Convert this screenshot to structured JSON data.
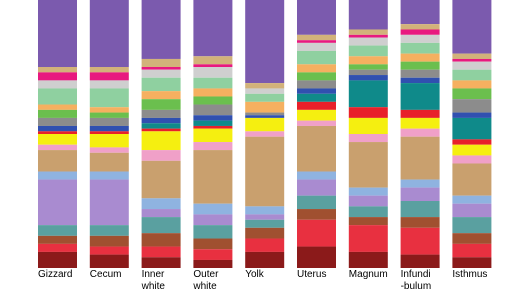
{
  "chart_data": {
    "type": "stacked-bar",
    "categories": [
      [
        "Gizzard"
      ],
      [
        "Cecum"
      ],
      [
        "Inner",
        "white"
      ],
      [
        "Outer",
        "white"
      ],
      [
        "Yolk"
      ],
      [
        "Uterus"
      ],
      [
        "Magnum"
      ],
      [
        "Infundi",
        "-bulum"
      ],
      [
        "Isthmus"
      ]
    ],
    "ylim": [
      0,
      100
    ],
    "series": [
      {
        "color": "#7b5aae",
        "values": [
          25,
          25,
          22,
          21,
          31,
          13,
          11,
          9,
          20
        ]
      },
      {
        "color": "#d2b27a",
        "values": [
          2,
          2,
          3,
          3,
          2,
          2,
          2,
          2,
          2
        ]
      },
      {
        "color": "#e8197f",
        "values": [
          3,
          3,
          1,
          1,
          0,
          1,
          1,
          2,
          1
        ]
      },
      {
        "color": "#cfcfcf",
        "values": [
          3,
          3,
          3,
          4,
          2,
          3,
          3,
          3,
          3
        ]
      },
      {
        "color": "#8fd0a0",
        "values": [
          6,
          7,
          5,
          4,
          3,
          5,
          4,
          4,
          4
        ]
      },
      {
        "color": "#f5b060",
        "values": [
          2,
          2,
          3,
          3,
          4,
          3,
          3,
          3,
          3
        ]
      },
      {
        "color": "#6bbf4e",
        "values": [
          3,
          2,
          4,
          3,
          0,
          3,
          2,
          3,
          4
        ]
      },
      {
        "color": "#8c8c8c",
        "values": [
          3,
          3,
          3,
          4,
          1,
          3,
          2,
          3,
          5
        ]
      },
      {
        "color": "#3050b0",
        "values": [
          2,
          2,
          2,
          2,
          1,
          2,
          2,
          2,
          2
        ]
      },
      {
        "color": "#0f8a8a",
        "values": [
          0,
          0,
          2,
          2,
          0,
          3,
          10,
          10,
          8
        ]
      },
      {
        "color": "#e8202a",
        "values": [
          1,
          1,
          1,
          1,
          0,
          3,
          4,
          3,
          2
        ]
      },
      {
        "color": "#f5ef10",
        "values": [
          4,
          5,
          7,
          5,
          5,
          4,
          6,
          4,
          4
        ]
      },
      {
        "color": "#f0a0c8",
        "values": [
          2,
          2,
          4,
          3,
          2,
          2,
          3,
          3,
          3
        ]
      },
      {
        "color": "#c9a06e",
        "values": [
          8,
          7,
          14,
          20,
          26,
          17,
          17,
          16,
          12
        ]
      },
      {
        "color": "#8fb3e0",
        "values": [
          3,
          3,
          4,
          4,
          3,
          3,
          3,
          3,
          3
        ]
      },
      {
        "color": "#a98bd0",
        "values": [
          17,
          17,
          3,
          4,
          2,
          6,
          4,
          5,
          5
        ]
      },
      {
        "color": "#5aa0a0",
        "values": [
          4,
          4,
          6,
          5,
          3,
          5,
          4,
          6,
          6
        ]
      },
      {
        "color": "#a05030",
        "values": [
          3,
          4,
          5,
          4,
          4,
          4,
          3,
          4,
          4
        ]
      },
      {
        "color": "#e83040",
        "values": [
          3,
          3,
          4,
          4,
          5,
          10,
          10,
          10,
          5
        ]
      },
      {
        "color": "#8b1a1a",
        "values": [
          6,
          5,
          4,
          3,
          6,
          8,
          6,
          5,
          4
        ]
      }
    ]
  }
}
